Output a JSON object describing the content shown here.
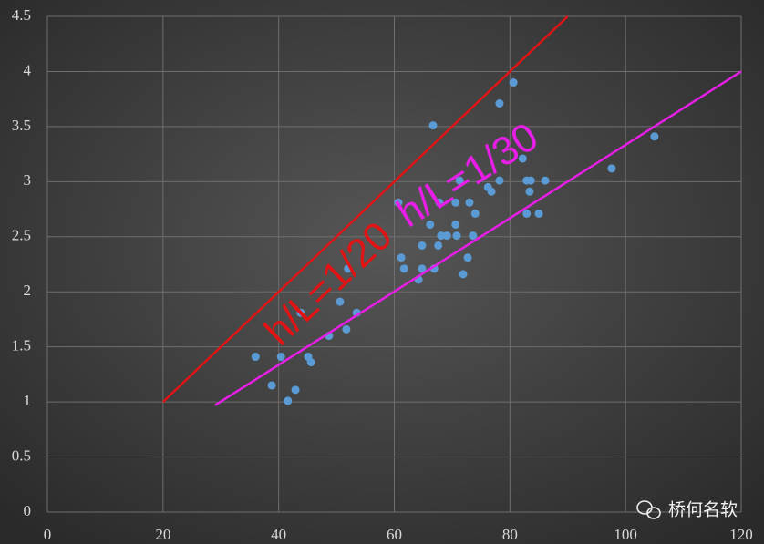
{
  "chart_data": {
    "type": "scatter",
    "xlim": [
      0,
      120
    ],
    "ylim": [
      0,
      4.5
    ],
    "xticks": [
      0,
      20,
      40,
      60,
      80,
      100,
      120
    ],
    "yticks": [
      0,
      0.5,
      1,
      1.5,
      2,
      2.5,
      3,
      3.5,
      4,
      4.5
    ],
    "grid": true,
    "series": [
      {
        "type": "scatter",
        "color": "#5b9bd5",
        "x": [
          36.0,
          38.8,
          40.4,
          41.6,
          42.9,
          43.8,
          45.1,
          45.6,
          48.7,
          50.6,
          51.7,
          52.0,
          53.5,
          60.7,
          61.2,
          61.7,
          64.2,
          64.8,
          64.8,
          66.2,
          66.7,
          66.9,
          67.6,
          67.8,
          68.1,
          69.1,
          70.6,
          70.6,
          70.8,
          71.3,
          71.9,
          72.7,
          73.0,
          73.6,
          74.0,
          76.2,
          76.8,
          78.2,
          78.2,
          80.6,
          82.2,
          82.9,
          82.9,
          83.4,
          83.6,
          85.0,
          86.1,
          97.6,
          105.0
        ],
        "values": [
          1.41,
          1.15,
          1.41,
          1.01,
          1.11,
          1.81,
          1.41,
          1.36,
          1.6,
          1.91,
          1.66,
          2.21,
          1.81,
          2.81,
          2.31,
          2.21,
          2.11,
          2.21,
          2.42,
          2.61,
          3.51,
          2.21,
          2.42,
          2.81,
          2.51,
          2.51,
          2.61,
          2.81,
          2.51,
          3.01,
          2.16,
          2.31,
          2.81,
          2.51,
          2.71,
          2.95,
          2.91,
          3.01,
          3.71,
          3.9,
          3.21,
          3.01,
          2.71,
          2.91,
          3.01,
          2.71,
          3.01,
          3.12,
          3.41
        ]
      },
      {
        "type": "line",
        "color": "#e01414",
        "label": "h/L=1/20",
        "x": [
          20,
          90
        ],
        "values": [
          1,
          4.5
        ]
      },
      {
        "type": "line",
        "color": "#e61ee6",
        "label": "h/L=1/30",
        "x": [
          29,
          120
        ],
        "values": [
          0.97,
          4
        ]
      }
    ]
  },
  "watermark": "桥何名软"
}
